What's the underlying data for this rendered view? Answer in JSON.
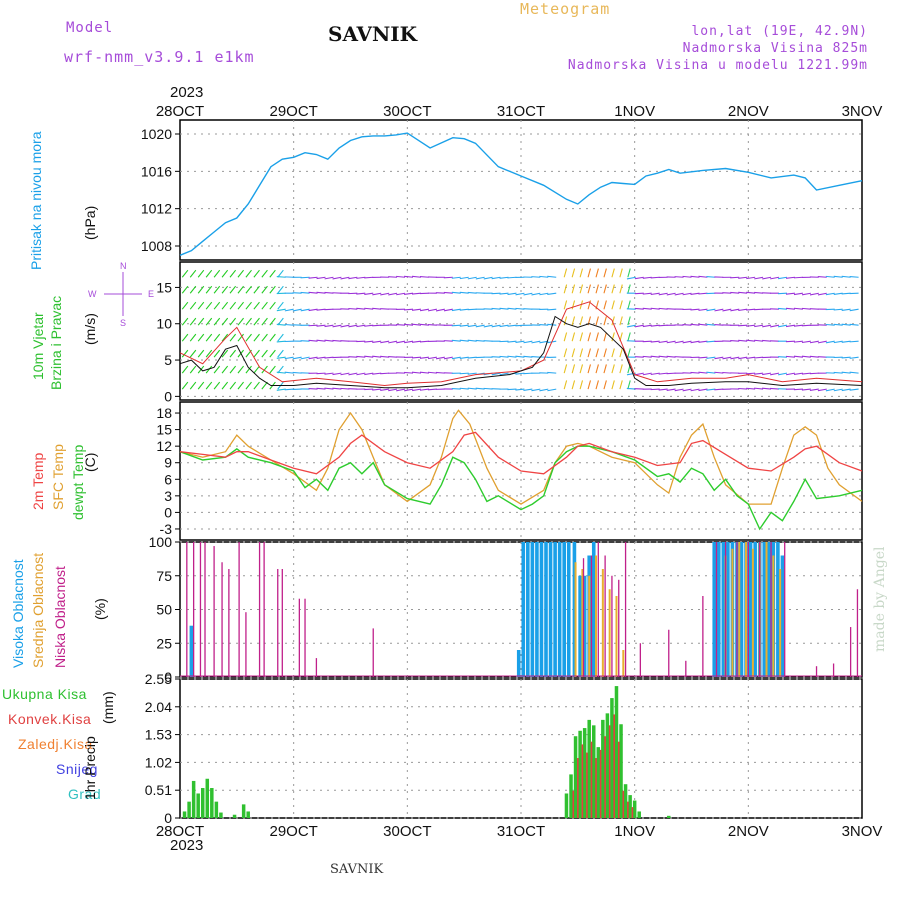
{
  "header": {
    "model_label": "Model",
    "model_name": "wrf-nmm_v3.9.1  e1km",
    "location": "SAVNIK",
    "product": "Meteogram",
    "lonlat": "lon,lat (19E, 42.9N)",
    "altitude": "Nadmorska Visina 825m",
    "model_altitude": "Nadmorska Visina u modelu 1221.99m",
    "year": "2023",
    "footer": "SAVNIK",
    "credit": "made by Angel"
  },
  "colors": {
    "pressure": "#1aa0e8",
    "temp2m": "#ef4444",
    "sfc": "#e0a030",
    "dewpt": "#2ecc2e",
    "high_cloud": "#1aa0e8",
    "mid_cloud": "#e8b030",
    "low_cloud": "#c0208a",
    "total_precip": "#30c030",
    "conv_precip": "#e04040",
    "wind_speed": "#111111",
    "gust": "#e03030"
  },
  "chart_data": [
    {
      "panel": "pressure",
      "type": "line",
      "x_ticks": [
        "28OCT",
        "29OCT",
        "30OCT",
        "31OCT",
        "1NOV",
        "2NOV",
        "3NOV"
      ],
      "ylabel": "Pritisak na nivou mora",
      "unit": "(hPa)",
      "ylim": [
        1006.5,
        1021.5
      ],
      "y_ticks": [
        1008,
        1012,
        1016,
        1020
      ],
      "series": [
        {
          "x": [
            0,
            0.1,
            0.2,
            0.3,
            0.4,
            0.5,
            0.6,
            0.7,
            0.8,
            0.9,
            1.0,
            1.1,
            1.2,
            1.3,
            1.4,
            1.5,
            1.6,
            1.7,
            1.8,
            1.9,
            2.0,
            2.2,
            2.4,
            2.5,
            2.6,
            2.8,
            3.0,
            3.2,
            3.4,
            3.5,
            3.6,
            3.7,
            3.8,
            3.9,
            4.0,
            4.1,
            4.2,
            4.3,
            4.4,
            4.6,
            4.8,
            5.0,
            5.2,
            5.4,
            5.5,
            5.6,
            5.8,
            6.0
          ],
          "values": [
            1007.0,
            1007.5,
            1008.5,
            1009.5,
            1010.5,
            1011.0,
            1012.5,
            1014.5,
            1016.5,
            1017.3,
            1017.5,
            1018.0,
            1017.8,
            1017.3,
            1018.5,
            1019.3,
            1019.7,
            1019.8,
            1019.8,
            1019.9,
            1020.1,
            1018.5,
            1019.6,
            1019.5,
            1019.0,
            1016.5,
            1015.5,
            1014.5,
            1013.0,
            1012.5,
            1013.5,
            1014.3,
            1014.8,
            1014.7,
            1014.6,
            1015.5,
            1015.8,
            1016.2,
            1015.8,
            1016.1,
            1016.3,
            1015.9,
            1015.3,
            1015.6,
            1015.3,
            1014.0,
            1014.5,
            1015.0
          ]
        }
      ]
    },
    {
      "panel": "wind",
      "type": "line",
      "ylabel_1": "10m Vjetar",
      "ylabel_2": "Brzina i Pravac",
      "unit": "(m/s)",
      "compass": [
        "N",
        "W",
        "E",
        "S"
      ],
      "ylim": [
        -0.5,
        18.5
      ],
      "y_ticks": [
        0,
        5,
        10,
        15
      ],
      "series": [
        {
          "name": "speed",
          "x": [
            0,
            0.1,
            0.2,
            0.3,
            0.4,
            0.5,
            0.6,
            0.7,
            0.8,
            1.0,
            1.2,
            1.5,
            1.8,
            2.0,
            2.3,
            2.6,
            2.9,
            3.0,
            3.1,
            3.2,
            3.3,
            3.4,
            3.5,
            3.6,
            3.7,
            3.8,
            3.9,
            4.0,
            4.1,
            4.3,
            4.5,
            4.8,
            5.0,
            5.3,
            5.6,
            6.0
          ],
          "values": [
            4.5,
            5.0,
            3.5,
            4.0,
            6.5,
            7.0,
            4.0,
            2.5,
            1.5,
            1.5,
            1.8,
            1.5,
            1.2,
            1.2,
            1.5,
            2.5,
            3.0,
            3.5,
            4.0,
            6.0,
            11.0,
            10.0,
            9.5,
            10.0,
            9.5,
            8.0,
            6.5,
            2.5,
            1.5,
            1.5,
            1.8,
            2.0,
            2.0,
            1.5,
            1.8,
            1.5
          ]
        },
        {
          "name": "gust",
          "x": [
            0,
            0.2,
            0.4,
            0.5,
            0.7,
            0.9,
            1.2,
            1.5,
            1.8,
            2.0,
            2.3,
            2.6,
            3.0,
            3.2,
            3.4,
            3.6,
            3.8,
            4.0,
            4.2,
            4.5,
            4.8,
            5.0,
            5.3,
            5.6,
            6.0
          ],
          "values": [
            6.0,
            4.5,
            8.0,
            9.5,
            4.0,
            2.0,
            2.5,
            2.0,
            1.5,
            1.8,
            2.0,
            3.0,
            3.5,
            5.0,
            12.0,
            13.0,
            10.5,
            3.0,
            2.0,
            2.5,
            2.5,
            3.0,
            2.0,
            2.5,
            2.0
          ]
        }
      ]
    },
    {
      "panel": "temperature",
      "type": "line",
      "ylabel_1": "2m Temp",
      "ylabel_2": "SFC Temp",
      "ylabel_3": "dewpt Temp",
      "unit": "(C)",
      "ylim": [
        -5,
        20
      ],
      "y_ticks": [
        -3,
        0,
        3,
        6,
        9,
        12,
        15,
        18
      ],
      "series": [
        {
          "name": "2m Temp",
          "x": [
            0,
            0.2,
            0.4,
            0.5,
            0.6,
            0.8,
            1.0,
            1.2,
            1.4,
            1.5,
            1.6,
            1.8,
            2.0,
            2.2,
            2.4,
            2.5,
            2.6,
            2.8,
            3.0,
            3.2,
            3.4,
            3.5,
            3.6,
            3.8,
            4.0,
            4.2,
            4.4,
            4.5,
            4.6,
            4.8,
            5.0,
            5.2,
            5.4,
            5.5,
            5.6,
            5.8,
            6.0
          ],
          "values": [
            11,
            10.5,
            10,
            11,
            11,
            9.5,
            8,
            7,
            10,
            12.5,
            14,
            11,
            9,
            8,
            11,
            14,
            14.5,
            10,
            7.5,
            7,
            10,
            12,
            12.5,
            11,
            10,
            8.5,
            9,
            12.5,
            13,
            10.5,
            8,
            7.5,
            10,
            11.5,
            12,
            9,
            7.5
          ]
        },
        {
          "name": "SFC Temp",
          "x": [
            0,
            0.2,
            0.4,
            0.5,
            0.6,
            0.8,
            1.0,
            1.2,
            1.3,
            1.4,
            1.5,
            1.6,
            1.7,
            1.8,
            2.0,
            2.2,
            2.3,
            2.4,
            2.45,
            2.55,
            2.7,
            2.8,
            3.0,
            3.2,
            3.3,
            3.4,
            3.5,
            3.6,
            3.8,
            4.0,
            4.2,
            4.3,
            4.4,
            4.5,
            4.6,
            4.7,
            4.8,
            5.0,
            5.2,
            5.3,
            5.4,
            5.5,
            5.6,
            5.7,
            5.8,
            6.0
          ],
          "values": [
            11,
            10,
            11,
            14,
            12,
            9.5,
            7,
            4,
            8,
            15,
            18,
            15,
            10,
            5,
            2,
            5,
            10,
            17,
            18.5,
            16,
            8,
            4,
            1.5,
            4,
            9,
            12,
            12.5,
            12,
            10,
            9,
            5,
            3.5,
            10,
            14,
            16,
            10,
            5,
            1.5,
            1.5,
            8,
            14,
            15.5,
            14,
            8,
            5,
            2
          ]
        },
        {
          "name": "dewpt Temp",
          "x": [
            0,
            0.2,
            0.4,
            0.5,
            0.6,
            0.8,
            1.0,
            1.1,
            1.2,
            1.3,
            1.4,
            1.5,
            1.6,
            1.7,
            1.8,
            2.0,
            2.2,
            2.3,
            2.4,
            2.5,
            2.6,
            2.7,
            2.8,
            3.0,
            3.1,
            3.2,
            3.3,
            3.4,
            3.5,
            3.6,
            3.8,
            4.0,
            4.2,
            4.3,
            4.4,
            4.5,
            4.6,
            4.7,
            4.8,
            4.9,
            5.0,
            5.1,
            5.2,
            5.3,
            5.4,
            5.5,
            5.6,
            5.8,
            6.0
          ],
          "values": [
            11,
            9.5,
            10,
            11.5,
            10,
            9,
            7.5,
            4.5,
            6,
            4,
            8,
            9,
            7,
            9,
            5,
            2.5,
            1.5,
            5,
            10,
            9,
            6,
            2,
            3,
            0.5,
            1.5,
            3,
            9,
            11,
            12,
            12,
            11,
            9.5,
            6.5,
            7,
            5.5,
            8,
            7,
            4,
            6,
            3,
            1.5,
            -3,
            0,
            -1.5,
            2,
            6,
            2.5,
            3,
            4
          ]
        }
      ]
    },
    {
      "panel": "clouds",
      "type": "bar",
      "ylabel_1": "Visoka Oblacnost",
      "ylabel_2": "Srednja Oblacnost",
      "ylabel_3": "Niska Oblacnost",
      "unit": "(%)",
      "ylim": [
        0,
        100
      ],
      "y_ticks": [
        0,
        25,
        50,
        75,
        100
      ],
      "high": [
        {
          "x": 0.1,
          "v": 38
        },
        {
          "x": 2.98,
          "v": 20
        },
        {
          "x": 3.02,
          "v": 100
        },
        {
          "x": 3.06,
          "v": 100
        },
        {
          "x": 3.1,
          "v": 100
        },
        {
          "x": 3.14,
          "v": 100
        },
        {
          "x": 3.18,
          "v": 100
        },
        {
          "x": 3.22,
          "v": 100
        },
        {
          "x": 3.26,
          "v": 100
        },
        {
          "x": 3.3,
          "v": 100
        },
        {
          "x": 3.34,
          "v": 100
        },
        {
          "x": 3.38,
          "v": 100
        },
        {
          "x": 3.42,
          "v": 100
        },
        {
          "x": 3.47,
          "v": 100
        },
        {
          "x": 3.52,
          "v": 75
        },
        {
          "x": 3.56,
          "v": 75
        },
        {
          "x": 3.6,
          "v": 90
        },
        {
          "x": 3.64,
          "v": 100
        },
        {
          "x": 4.7,
          "v": 100
        },
        {
          "x": 4.74,
          "v": 100
        },
        {
          "x": 4.78,
          "v": 100
        },
        {
          "x": 4.82,
          "v": 100
        },
        {
          "x": 4.86,
          "v": 100
        },
        {
          "x": 4.9,
          "v": 100
        },
        {
          "x": 4.94,
          "v": 100
        },
        {
          "x": 4.98,
          "v": 100
        },
        {
          "x": 5.02,
          "v": 100
        },
        {
          "x": 5.06,
          "v": 100
        },
        {
          "x": 5.1,
          "v": 100
        },
        {
          "x": 5.14,
          "v": 100
        },
        {
          "x": 5.18,
          "v": 100
        },
        {
          "x": 5.22,
          "v": 100
        },
        {
          "x": 5.26,
          "v": 100
        },
        {
          "x": 5.3,
          "v": 90
        }
      ],
      "mid": [
        {
          "x": 3.48,
          "v": 85
        },
        {
          "x": 3.54,
          "v": 80
        },
        {
          "x": 3.6,
          "v": 75
        },
        {
          "x": 3.66,
          "v": 90
        },
        {
          "x": 3.72,
          "v": 80
        },
        {
          "x": 3.78,
          "v": 65
        },
        {
          "x": 3.84,
          "v": 60
        },
        {
          "x": 3.9,
          "v": 20
        },
        {
          "x": 4.8,
          "v": 90
        },
        {
          "x": 4.86,
          "v": 95
        },
        {
          "x": 4.92,
          "v": 100
        },
        {
          "x": 4.98,
          "v": 100
        },
        {
          "x": 5.04,
          "v": 95
        },
        {
          "x": 5.1,
          "v": 100
        },
        {
          "x": 5.16,
          "v": 100
        },
        {
          "x": 5.22,
          "v": 90
        },
        {
          "x": 5.28,
          "v": 80
        }
      ],
      "low": [
        {
          "x": 0.06,
          "v": 100
        },
        {
          "x": 0.12,
          "v": 100
        },
        {
          "x": 0.18,
          "v": 100
        },
        {
          "x": 0.22,
          "v": 100
        },
        {
          "x": 0.3,
          "v": 97
        },
        {
          "x": 0.37,
          "v": 85
        },
        {
          "x": 0.43,
          "v": 80
        },
        {
          "x": 0.52,
          "v": 100
        },
        {
          "x": 0.58,
          "v": 48
        },
        {
          "x": 0.7,
          "v": 100
        },
        {
          "x": 0.74,
          "v": 100
        },
        {
          "x": 0.86,
          "v": 80
        },
        {
          "x": 0.9,
          "v": 80
        },
        {
          "x": 1.05,
          "v": 58
        },
        {
          "x": 1.1,
          "v": 58
        },
        {
          "x": 1.2,
          "v": 14
        },
        {
          "x": 1.7,
          "v": 36
        },
        {
          "x": 3.55,
          "v": 88
        },
        {
          "x": 3.62,
          "v": 90
        },
        {
          "x": 3.68,
          "v": 100
        },
        {
          "x": 3.74,
          "v": 90
        },
        {
          "x": 3.8,
          "v": 75
        },
        {
          "x": 3.86,
          "v": 72
        },
        {
          "x": 3.92,
          "v": 100
        },
        {
          "x": 4.05,
          "v": 25
        },
        {
          "x": 4.3,
          "v": 35
        },
        {
          "x": 4.45,
          "v": 12
        },
        {
          "x": 4.6,
          "v": 60
        },
        {
          "x": 4.72,
          "v": 100
        },
        {
          "x": 4.8,
          "v": 100
        },
        {
          "x": 4.9,
          "v": 100
        },
        {
          "x": 5.0,
          "v": 100
        },
        {
          "x": 5.1,
          "v": 100
        },
        {
          "x": 5.2,
          "v": 100
        },
        {
          "x": 5.32,
          "v": 100
        },
        {
          "x": 5.6,
          "v": 8
        },
        {
          "x": 5.75,
          "v": 10
        },
        {
          "x": 5.9,
          "v": 37
        },
        {
          "x": 5.96,
          "v": 65
        }
      ]
    },
    {
      "panel": "precipitation",
      "type": "bar",
      "legend": [
        "Ukupna Kisa",
        "Konvek.Kisa",
        "Zaledj.Kisa",
        "Snijeg",
        "Grad"
      ],
      "ylabel": "1hr Precip",
      "unit": "(mm)",
      "ylim": [
        0,
        2.55
      ],
      "y_ticks": [
        0,
        0.51,
        1.02,
        1.53,
        2.04,
        2.55
      ],
      "total": [
        {
          "x": 0.04,
          "v": 0.12
        },
        {
          "x": 0.08,
          "v": 0.3
        },
        {
          "x": 0.12,
          "v": 0.68
        },
        {
          "x": 0.16,
          "v": 0.45
        },
        {
          "x": 0.2,
          "v": 0.55
        },
        {
          "x": 0.24,
          "v": 0.72
        },
        {
          "x": 0.28,
          "v": 0.55
        },
        {
          "x": 0.32,
          "v": 0.3
        },
        {
          "x": 0.36,
          "v": 0.1
        },
        {
          "x": 0.48,
          "v": 0.06
        },
        {
          "x": 0.56,
          "v": 0.25
        },
        {
          "x": 0.6,
          "v": 0.12
        },
        {
          "x": 3.4,
          "v": 0.45
        },
        {
          "x": 3.44,
          "v": 0.8
        },
        {
          "x": 3.48,
          "v": 1.5
        },
        {
          "x": 3.52,
          "v": 1.6
        },
        {
          "x": 3.56,
          "v": 1.65
        },
        {
          "x": 3.6,
          "v": 1.8
        },
        {
          "x": 3.64,
          "v": 1.7
        },
        {
          "x": 3.68,
          "v": 1.3
        },
        {
          "x": 3.72,
          "v": 1.8
        },
        {
          "x": 3.76,
          "v": 1.92
        },
        {
          "x": 3.8,
          "v": 2.2
        },
        {
          "x": 3.84,
          "v": 2.42
        },
        {
          "x": 3.88,
          "v": 1.72
        },
        {
          "x": 3.92,
          "v": 0.62
        },
        {
          "x": 3.96,
          "v": 0.42
        },
        {
          "x": 4.0,
          "v": 0.32
        },
        {
          "x": 4.04,
          "v": 0.12
        },
        {
          "x": 4.3,
          "v": 0.04
        }
      ],
      "convective": [
        {
          "x": 3.46,
          "v": 0.5
        },
        {
          "x": 3.5,
          "v": 1.1
        },
        {
          "x": 3.54,
          "v": 1.35
        },
        {
          "x": 3.58,
          "v": 1.2
        },
        {
          "x": 3.62,
          "v": 1.4
        },
        {
          "x": 3.66,
          "v": 1.1
        },
        {
          "x": 3.7,
          "v": 1.25
        },
        {
          "x": 3.74,
          "v": 1.5
        },
        {
          "x": 3.78,
          "v": 1.7
        },
        {
          "x": 3.82,
          "v": 1.9
        },
        {
          "x": 3.86,
          "v": 1.4
        },
        {
          "x": 3.9,
          "v": 0.5
        },
        {
          "x": 3.94,
          "v": 0.3
        },
        {
          "x": 3.98,
          "v": 0.2
        }
      ]
    }
  ]
}
